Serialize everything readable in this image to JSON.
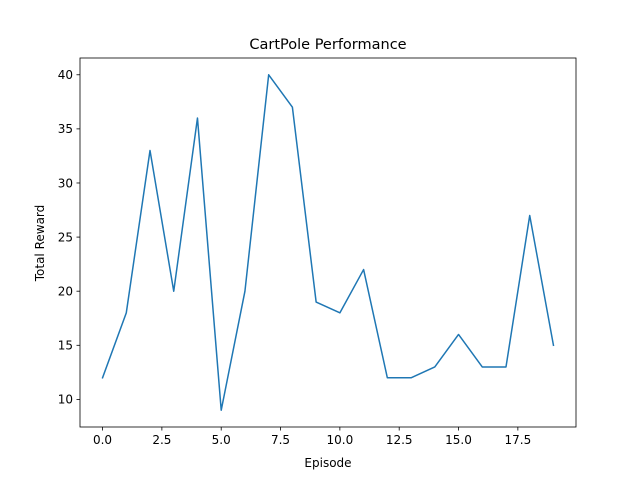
{
  "chart_data": {
    "type": "line",
    "title": "CartPole Performance",
    "xlabel": "Episode",
    "ylabel": "Total Reward",
    "xlim": [
      -0.95,
      19.95
    ],
    "ylim": [
      7.45,
      41.55
    ],
    "xticks": [
      0,
      2.5,
      5,
      7.5,
      10,
      12.5,
      15,
      17.5
    ],
    "xtick_labels": [
      "0.0",
      "2.5",
      "5.0",
      "7.5",
      "10.0",
      "12.5",
      "15.0",
      "17.5"
    ],
    "yticks": [
      10,
      15,
      20,
      25,
      30,
      35,
      40
    ],
    "ytick_labels": [
      "10",
      "15",
      "20",
      "25",
      "30",
      "35",
      "40"
    ],
    "grid": false,
    "series": [
      {
        "color": "#1f77b4",
        "x": [
          0,
          1,
          2,
          3,
          4,
          5,
          6,
          7,
          8,
          9,
          10,
          11,
          12,
          13,
          14,
          15,
          16,
          17,
          18,
          19
        ],
        "y": [
          12,
          18,
          33,
          20,
          36,
          9,
          20,
          40,
          37,
          19,
          18,
          22,
          12,
          12,
          13,
          16,
          13,
          13,
          27,
          15
        ]
      }
    ]
  }
}
